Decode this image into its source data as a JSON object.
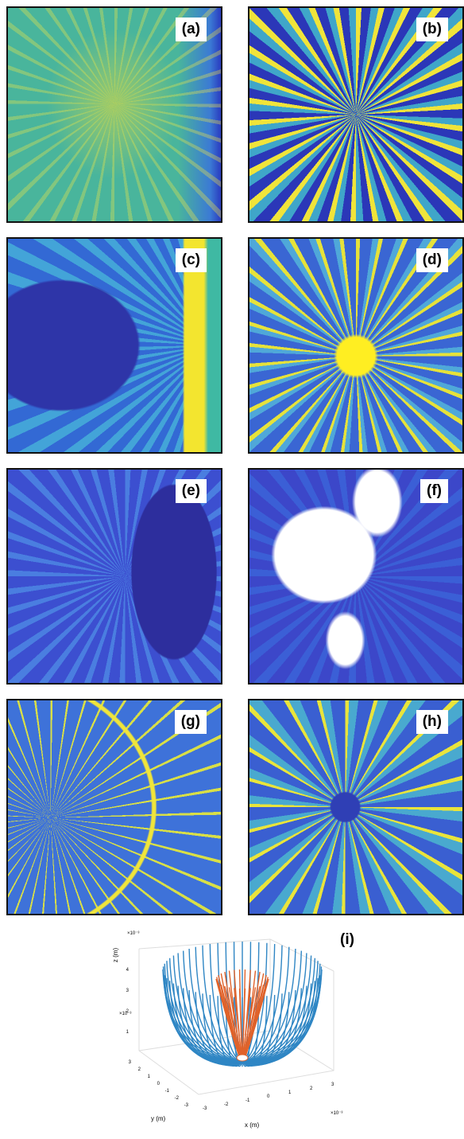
{
  "panels": [
    {
      "label": "(a)"
    },
    {
      "label": "(b)"
    },
    {
      "label": "(c)"
    },
    {
      "label": "(d)"
    },
    {
      "label": "(e)"
    },
    {
      "label": "(f)"
    },
    {
      "label": "(g)"
    },
    {
      "label": "(h)"
    }
  ],
  "plot3d": {
    "label": "(i)",
    "z_label": "z (m)",
    "y_label": "y (m)",
    "x_label": "x (m)",
    "z_exponent": "×10⁻³",
    "y_exponent": "×10⁻³",
    "x_exponent": "×10⁻³",
    "z_ticks": [
      "1",
      "2",
      "3",
      "4"
    ],
    "y_ticks": [
      "3",
      "2",
      "1",
      "0",
      "-1",
      "-2",
      "-3"
    ],
    "x_ticks": [
      "-3",
      "-2",
      "-1",
      "0",
      "1",
      "2",
      "3"
    ]
  }
}
